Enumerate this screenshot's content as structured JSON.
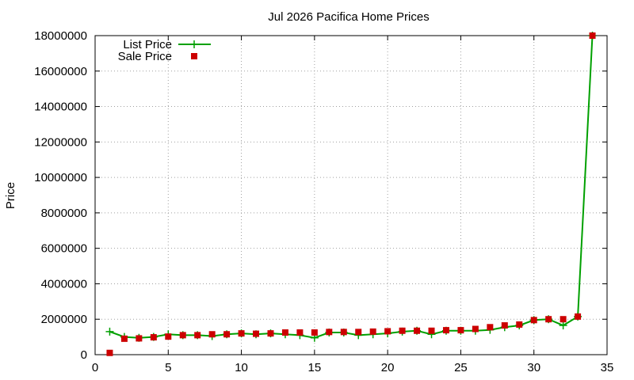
{
  "chart_data": {
    "type": "line",
    "title": "Jul 2026 Pacifica Home Prices",
    "xlabel": "",
    "ylabel": "Price",
    "xlim": [
      0,
      35
    ],
    "ylim": [
      0,
      18000000
    ],
    "xticks": [
      0,
      5,
      10,
      15,
      20,
      25,
      30,
      35
    ],
    "yticks": [
      0,
      2000000,
      4000000,
      6000000,
      8000000,
      10000000,
      12000000,
      14000000,
      16000000,
      18000000
    ],
    "grid": true,
    "legend_position": "top-left",
    "series": [
      {
        "name": "List Price",
        "style": "lines+cross",
        "color": "#00a000",
        "x": [
          1,
          2,
          3,
          4,
          5,
          6,
          7,
          8,
          9,
          10,
          11,
          12,
          13,
          14,
          15,
          16,
          17,
          18,
          19,
          20,
          21,
          22,
          23,
          24,
          25,
          26,
          27,
          28,
          29,
          30,
          31,
          32,
          33,
          34
        ],
        "y": [
          1300000,
          1000000,
          950000,
          1000000,
          1150000,
          1100000,
          1100000,
          1050000,
          1150000,
          1200000,
          1150000,
          1200000,
          1150000,
          1100000,
          950000,
          1250000,
          1250000,
          1100000,
          1150000,
          1200000,
          1300000,
          1350000,
          1150000,
          1350000,
          1350000,
          1350000,
          1400000,
          1550000,
          1650000,
          1950000,
          2000000,
          1650000,
          2150000,
          18000000
        ]
      },
      {
        "name": "Sale Price",
        "style": "points-square",
        "color": "#cc0000",
        "x": [
          1,
          2,
          3,
          4,
          5,
          6,
          7,
          8,
          9,
          10,
          11,
          12,
          13,
          14,
          15,
          16,
          17,
          18,
          19,
          20,
          21,
          22,
          23,
          24,
          25,
          26,
          27,
          28,
          29,
          30,
          31,
          32,
          33,
          34
        ],
        "y": [
          100000,
          900000,
          920000,
          980000,
          1020000,
          1100000,
          1100000,
          1150000,
          1150000,
          1200000,
          1180000,
          1200000,
          1250000,
          1250000,
          1250000,
          1280000,
          1280000,
          1280000,
          1300000,
          1320000,
          1350000,
          1350000,
          1350000,
          1380000,
          1380000,
          1450000,
          1550000,
          1650000,
          1700000,
          1950000,
          2000000,
          2000000,
          2150000,
          18000000
        ]
      }
    ]
  }
}
